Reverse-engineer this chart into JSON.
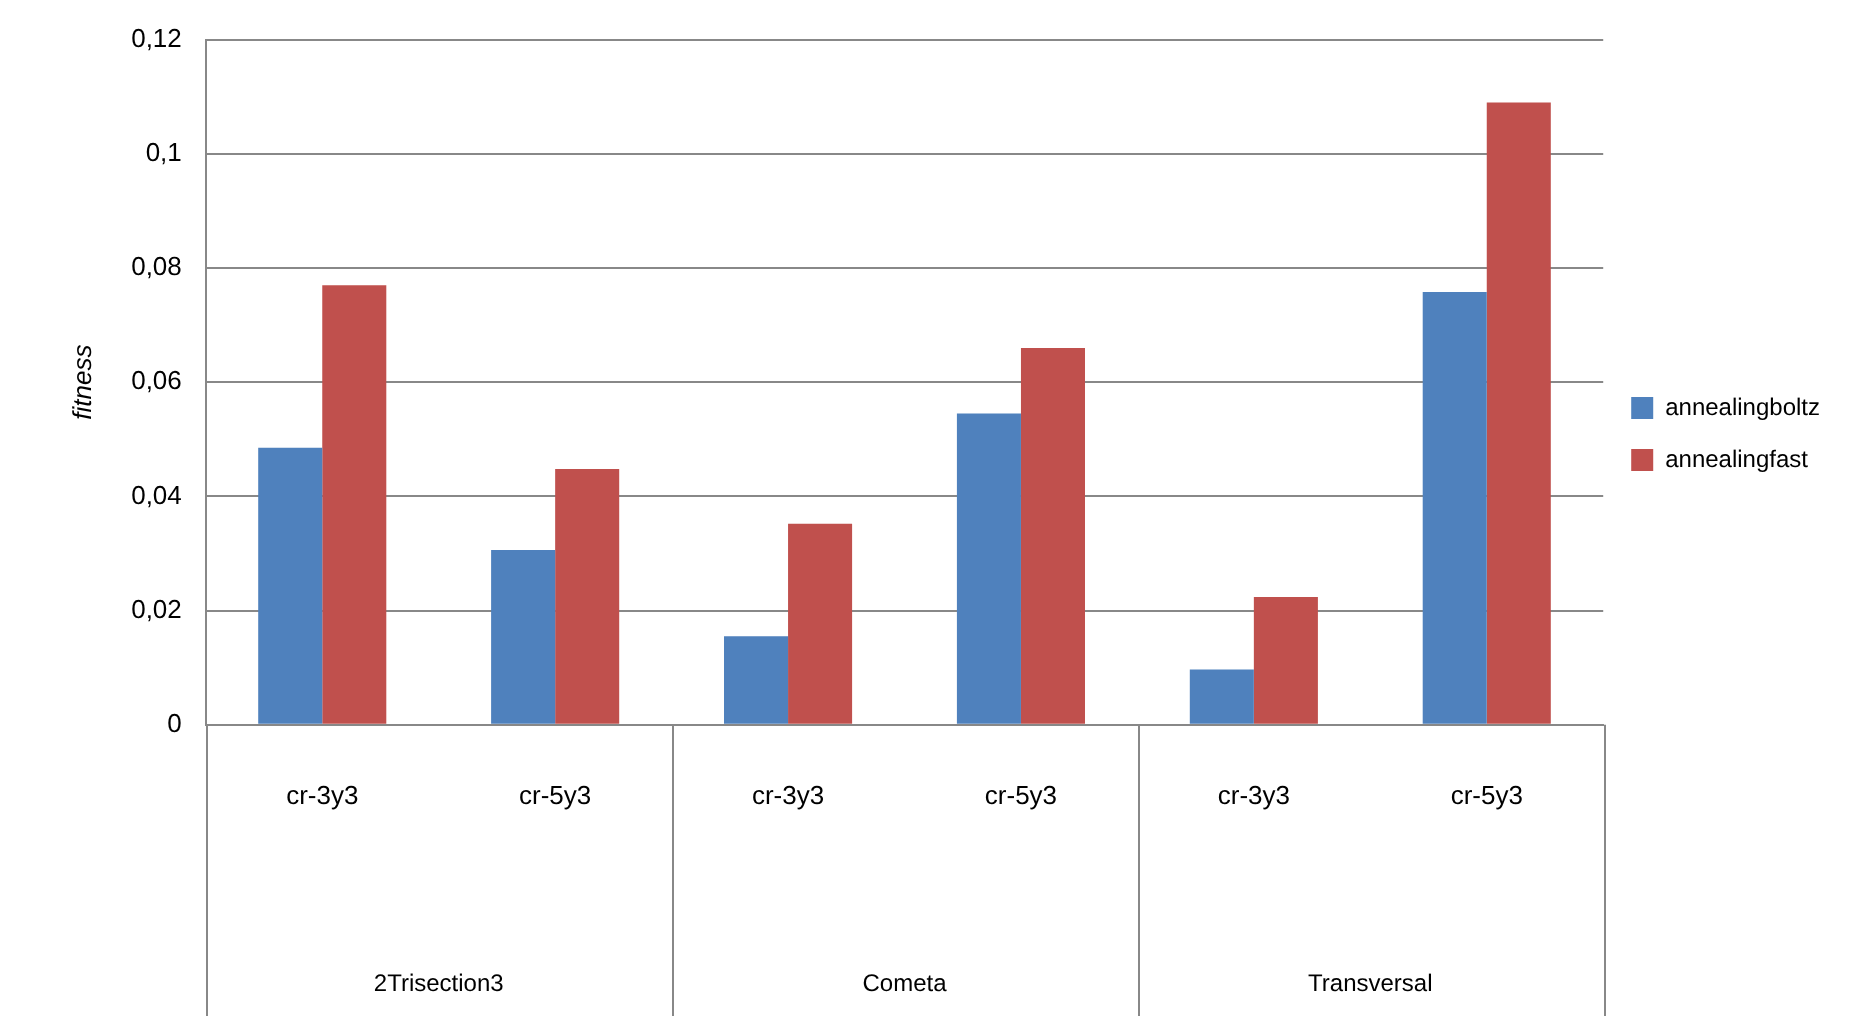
{
  "chart_data": {
    "type": "bar",
    "ylabel": "fitness",
    "categories": [
      "cr-3y3",
      "cr-5y3",
      "cr-3y3",
      "cr-5y3",
      "cr-3y3",
      "cr-5y3"
    ],
    "series": [
      {
        "name": "annealingboltz",
        "color": "#4f81bd",
        "values": [
          0.0485,
          0.0306,
          0.0155,
          0.0545,
          0.0097,
          0.0758
        ]
      },
      {
        "name": "annealingfast",
        "color": "#c0504d",
        "values": [
          0.077,
          0.0448,
          0.0352,
          0.066,
          0.0224,
          0.109
        ]
      }
    ],
    "ylim": [
      0,
      0.12
    ],
    "yticks": [
      0,
      {
        "value": 0.02,
        "label": "0,02"
      },
      {
        "value": 0.04,
        "label": "0,04"
      },
      {
        "value": 0.06,
        "label": "0,06"
      },
      {
        "value": 0.08,
        "label": "0,08"
      },
      {
        "value": 0.1,
        "label": "0,1"
      },
      {
        "value": 0.12,
        "label": "0,12"
      }
    ],
    "grid": "y",
    "legend": "right",
    "annotations": [
      "2Trisection3",
      "Cometa",
      "Transversal"
    ]
  }
}
